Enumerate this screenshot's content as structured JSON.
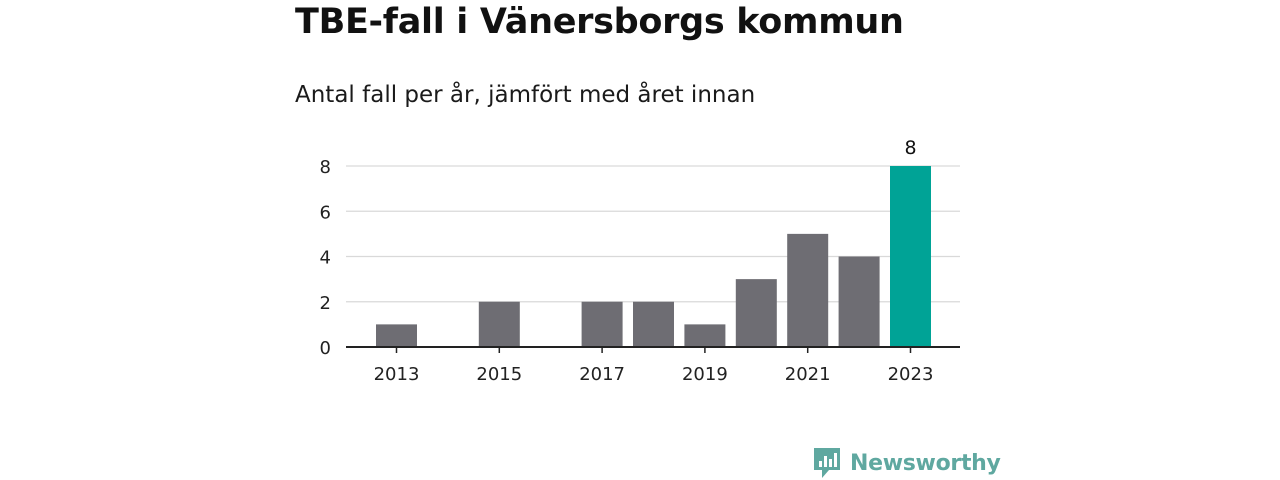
{
  "title": "TBE-fall i Vänersborgs kommun",
  "subtitle": "Antal fall per år, jämfört med året innan",
  "logo": {
    "text": "Newsworthy",
    "icon": "bar-chart-speech-bubble-icon",
    "color": "#5fa8a0"
  },
  "colors": {
    "bar": "#6e6d73",
    "highlight": "#00a396",
    "grid": "#d9d9d9",
    "axis": "#222222"
  },
  "chart_data": {
    "type": "bar",
    "categories": [
      "2013",
      "2014",
      "2015",
      "2016",
      "2017",
      "2018",
      "2019",
      "2020",
      "2021",
      "2022",
      "2023"
    ],
    "values": [
      1,
      0,
      2,
      0,
      2,
      2,
      1,
      3,
      5,
      4,
      8
    ],
    "highlight_index": 10,
    "data_labels": {
      "2023": "8"
    },
    "x_tick_labels": [
      "2013",
      "2015",
      "2017",
      "2019",
      "2021",
      "2023"
    ],
    "y_ticks": [
      0,
      2,
      4,
      6,
      8
    ],
    "ylim": [
      0,
      8
    ],
    "grid": true,
    "legend": "none"
  }
}
